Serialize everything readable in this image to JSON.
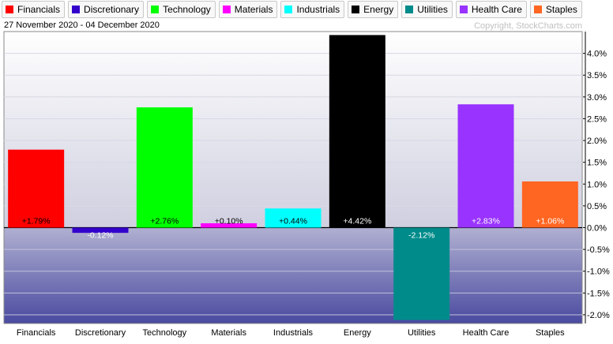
{
  "chart_data": {
    "type": "bar",
    "date_range": "27 November 2020 - 04 December 2020",
    "copyright": "Copyright, StockCharts.com",
    "categories": [
      "Financials",
      "Discretionary",
      "Technology",
      "Materials",
      "Industrials",
      "Energy",
      "Utilities",
      "Health Care",
      "Staples"
    ],
    "values": [
      1.79,
      -0.12,
      2.76,
      0.1,
      0.44,
      4.42,
      -2.12,
      2.83,
      1.06
    ],
    "value_labels": [
      "+1.79%",
      "-0.12%",
      "+2.76%",
      "+0.10%",
      "+0.44%",
      "+4.42%",
      "-2.12%",
      "+2.83%",
      "+1.06%"
    ],
    "colors": [
      "#ff0000",
      "#3300cc",
      "#00ff00",
      "#ff00ff",
      "#00ffff",
      "#000000",
      "#008b8b",
      "#9933ff",
      "#ff6622"
    ],
    "label_colors": [
      "#000000",
      "#ffffff",
      "#000000",
      "#000000",
      "#000000",
      "#ffffff",
      "#ffffff",
      "#ffffff",
      "#ffffff"
    ],
    "y_ticks": [
      4.0,
      3.5,
      3.0,
      2.5,
      2.0,
      1.5,
      1.0,
      0.5,
      0.0,
      -0.5,
      -1.0,
      -1.5,
      -2.0
    ],
    "y_tick_labels": [
      "4.0%",
      "3.5%",
      "3.0%",
      "2.5%",
      "2.0%",
      "1.5%",
      "1.0%",
      "0.5%",
      "0.0%",
      "-0.5%",
      "-1.0%",
      "-1.5%",
      "-2.0%"
    ],
    "ylim": [
      -2.2,
      4.5
    ],
    "grid": true,
    "legend_position": "top"
  }
}
